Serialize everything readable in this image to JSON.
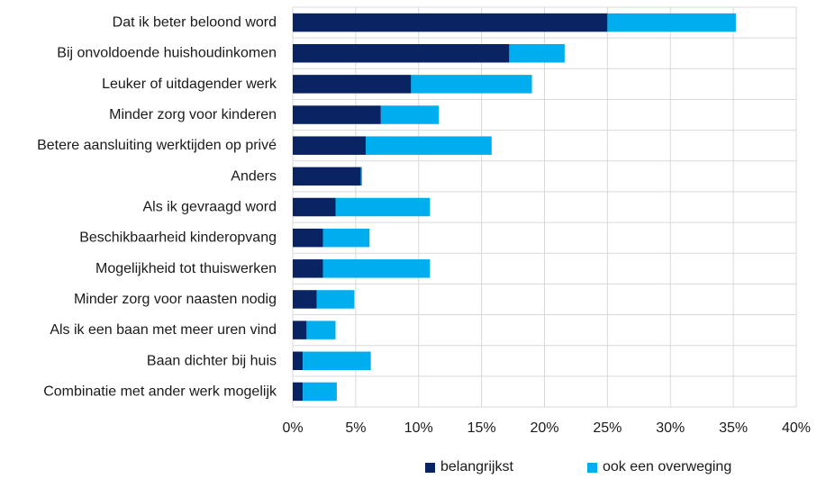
{
  "chart_data": {
    "type": "bar",
    "orientation": "horizontal",
    "stacked": true,
    "title": "",
    "xlabel": "",
    "ylabel": "",
    "xlim": [
      0,
      40
    ],
    "x_ticks": [
      "0%",
      "5%",
      "10%",
      "15%",
      "20%",
      "25%",
      "30%",
      "35%",
      "40%"
    ],
    "grid": true,
    "legend_position": "bottom",
    "categories": [
      "Dat ik beter beloond word",
      "Bij onvoldoende huishoudinkomen",
      "Leuker of uitdagender werk",
      "Minder zorg voor kinderen",
      "Betere aansluiting werktijden op privé",
      "Anders",
      "Als ik gevraagd word",
      "Beschikbaarheid kinderopvang",
      "Mogelijkheid tot thuiswerken",
      "Minder zorg voor naasten nodig",
      "Als ik een baan met meer uren vind",
      "Baan dichter bij huis",
      "Combinatie met ander werk mogelijk"
    ],
    "series": [
      {
        "name": "belangrijkst",
        "color": "#0a2463",
        "values": [
          25.0,
          17.2,
          9.4,
          7.0,
          5.8,
          5.4,
          3.4,
          2.4,
          2.4,
          1.9,
          1.1,
          0.8,
          0.8
        ]
      },
      {
        "name": "ook een overweging",
        "color": "#00aeef",
        "values": [
          10.2,
          4.4,
          9.6,
          4.6,
          10.0,
          0.1,
          7.5,
          3.7,
          8.5,
          3.0,
          2.3,
          5.4,
          2.7
        ]
      }
    ]
  }
}
